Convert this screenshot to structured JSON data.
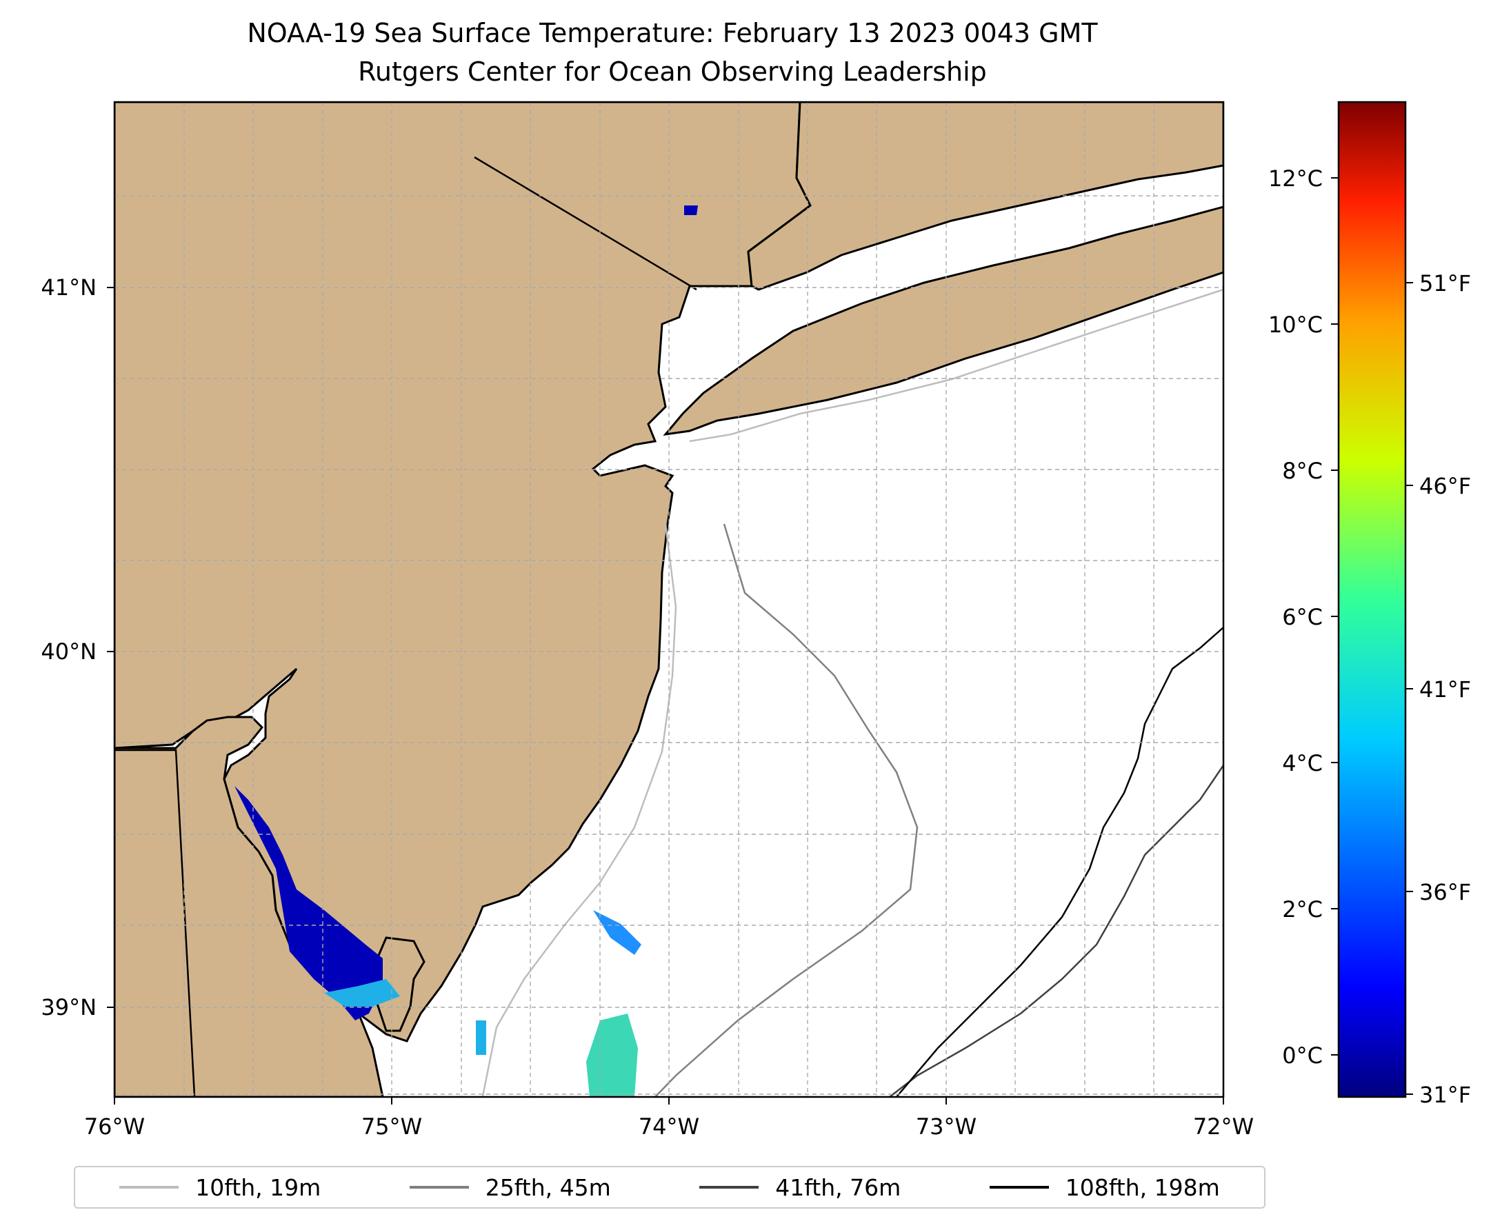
{
  "title": {
    "line1": "NOAA-19 Sea Surface Temperature: February 13 2023 0043 GMT",
    "line2": "Rutgers Center for Ocean Observing Leadership"
  },
  "map": {
    "lon_ticks": [
      "76°W",
      "75°W",
      "74°W",
      "73°W",
      "72°W"
    ],
    "lat_ticks": [
      "41°N",
      "40°N",
      "39°N"
    ],
    "land_color": "#d2b48c",
    "water_color": "#ffffff",
    "grid_color": "#aaaaaa",
    "no_data": "white"
  },
  "colorbar": {
    "colormap": "jet",
    "celsius_ticks": [
      "12°C",
      "10°C",
      "8°C",
      "6°C",
      "4°C",
      "2°C",
      "0°C"
    ],
    "fahrenheit_ticks": [
      "51°F",
      "46°F",
      "41°F",
      "36°F",
      "31°F"
    ]
  },
  "legend": [
    {
      "label": "10fth, 19m",
      "color": "#bdbdbd"
    },
    {
      "label": "25fth, 45m",
      "color": "#808080"
    },
    {
      "label": "41fth, 76m",
      "color": "#404040"
    },
    {
      "label": "108fth, 198m",
      "color": "#000000"
    }
  ]
}
